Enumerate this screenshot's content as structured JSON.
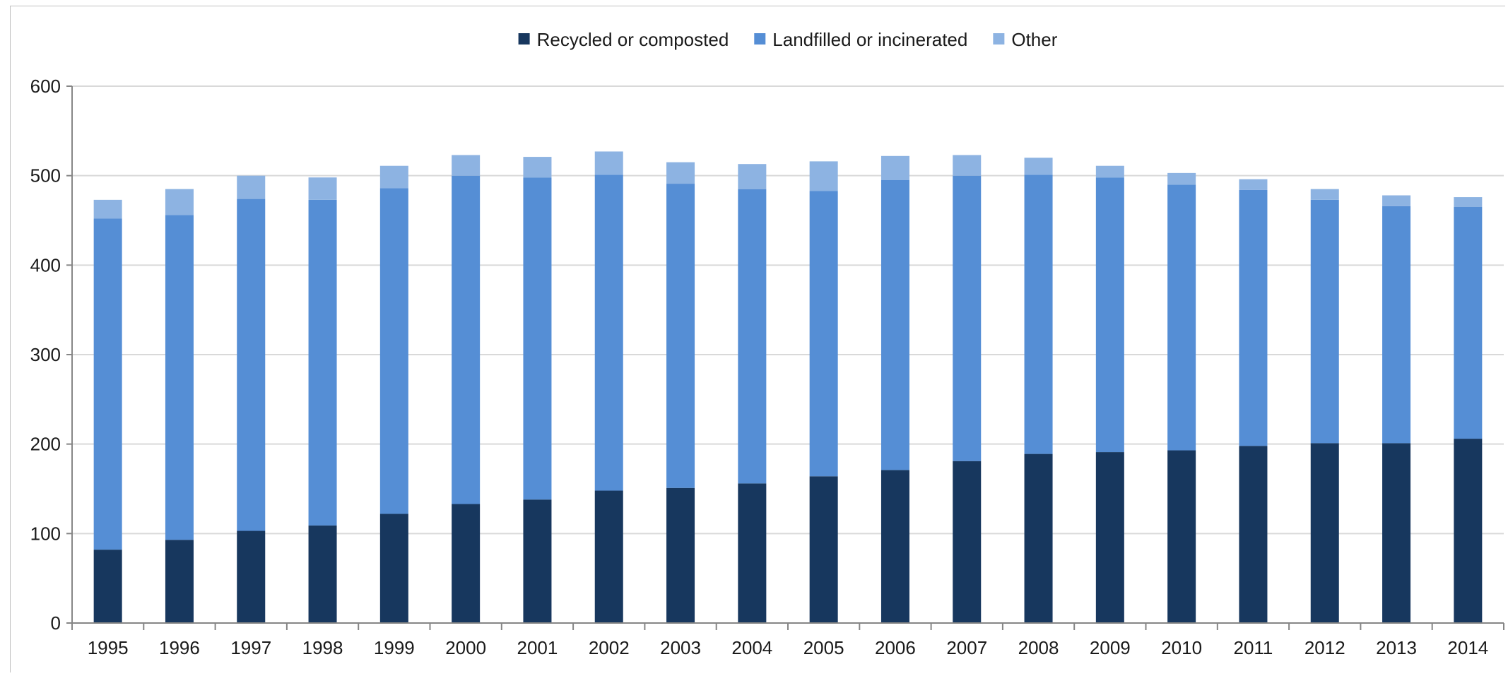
{
  "chart_data": {
    "type": "bar",
    "stacked": true,
    "categories": [
      "1995",
      "1996",
      "1997",
      "1998",
      "1999",
      "2000",
      "2001",
      "2002",
      "2003",
      "2004",
      "2005",
      "2006",
      "2007",
      "2008",
      "2009",
      "2010",
      "2011",
      "2012",
      "2013",
      "2014"
    ],
    "series": [
      {
        "name": "Recycled or composted",
        "color": "#17375e",
        "values": [
          82,
          93,
          103,
          109,
          122,
          133,
          138,
          148,
          151,
          156,
          164,
          171,
          181,
          189,
          191,
          193,
          198,
          201,
          201,
          206
        ]
      },
      {
        "name": "Landfilled or incinerated",
        "color": "#558ed5",
        "values": [
          370,
          363,
          371,
          364,
          364,
          367,
          360,
          353,
          340,
          329,
          319,
          324,
          319,
          312,
          307,
          297,
          286,
          272,
          265,
          259
        ]
      },
      {
        "name": "Other",
        "color": "#8db3e2",
        "values": [
          21,
          29,
          26,
          25,
          25,
          23,
          23,
          26,
          24,
          28,
          33,
          27,
          23,
          19,
          13,
          13,
          12,
          12,
          12,
          11
        ]
      }
    ],
    "title": "",
    "xlabel": "",
    "ylabel": "",
    "ylim": [
      0,
      600
    ],
    "yticks": [
      0,
      100,
      200,
      300,
      400,
      500,
      600
    ],
    "grid": true,
    "legend_position": "top-center"
  }
}
